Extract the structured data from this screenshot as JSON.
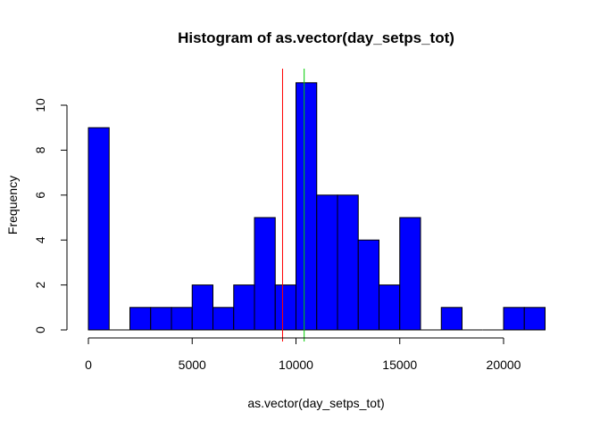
{
  "chart_data": {
    "type": "histogram",
    "title": "Histogram of as.vector(day_setps_tot)",
    "xlabel": "as.vector(day_setps_tot)",
    "ylabel": "Frequency",
    "bin_width": 1000,
    "bins": [
      {
        "x0": 0,
        "x1": 1000,
        "count": 9
      },
      {
        "x0": 1000,
        "x1": 2000,
        "count": 0
      },
      {
        "x0": 2000,
        "x1": 3000,
        "count": 1
      },
      {
        "x0": 3000,
        "x1": 4000,
        "count": 1
      },
      {
        "x0": 4000,
        "x1": 5000,
        "count": 1
      },
      {
        "x0": 5000,
        "x1": 6000,
        "count": 2
      },
      {
        "x0": 6000,
        "x1": 7000,
        "count": 1
      },
      {
        "x0": 7000,
        "x1": 8000,
        "count": 2
      },
      {
        "x0": 8000,
        "x1": 9000,
        "count": 5
      },
      {
        "x0": 9000,
        "x1": 10000,
        "count": 2
      },
      {
        "x0": 10000,
        "x1": 11000,
        "count": 11
      },
      {
        "x0": 11000,
        "x1": 12000,
        "count": 6
      },
      {
        "x0": 12000,
        "x1": 13000,
        "count": 6
      },
      {
        "x0": 13000,
        "x1": 14000,
        "count": 4
      },
      {
        "x0": 14000,
        "x1": 15000,
        "count": 2
      },
      {
        "x0": 15000,
        "x1": 16000,
        "count": 5
      },
      {
        "x0": 16000,
        "x1": 17000,
        "count": 0
      },
      {
        "x0": 17000,
        "x1": 18000,
        "count": 1
      },
      {
        "x0": 18000,
        "x1": 19000,
        "count": 0
      },
      {
        "x0": 19000,
        "x1": 20000,
        "count": 0
      },
      {
        "x0": 20000,
        "x1": 21000,
        "count": 1
      },
      {
        "x0": 21000,
        "x1": 22000,
        "count": 1
      }
    ],
    "xlim": [
      0,
      22000
    ],
    "ylim": [
      0,
      11
    ],
    "x_ticks": [
      0,
      5000,
      10000,
      15000,
      20000
    ],
    "y_ticks": [
      0,
      2,
      4,
      6,
      8,
      10
    ],
    "vertical_lines": [
      {
        "x": 9354,
        "color": "#ff0000"
      },
      {
        "x": 10395,
        "color": "#00cc00"
      }
    ],
    "bar_color": "#0000ff",
    "bar_edge_color": "#000000",
    "grid": false,
    "legend": "none"
  }
}
